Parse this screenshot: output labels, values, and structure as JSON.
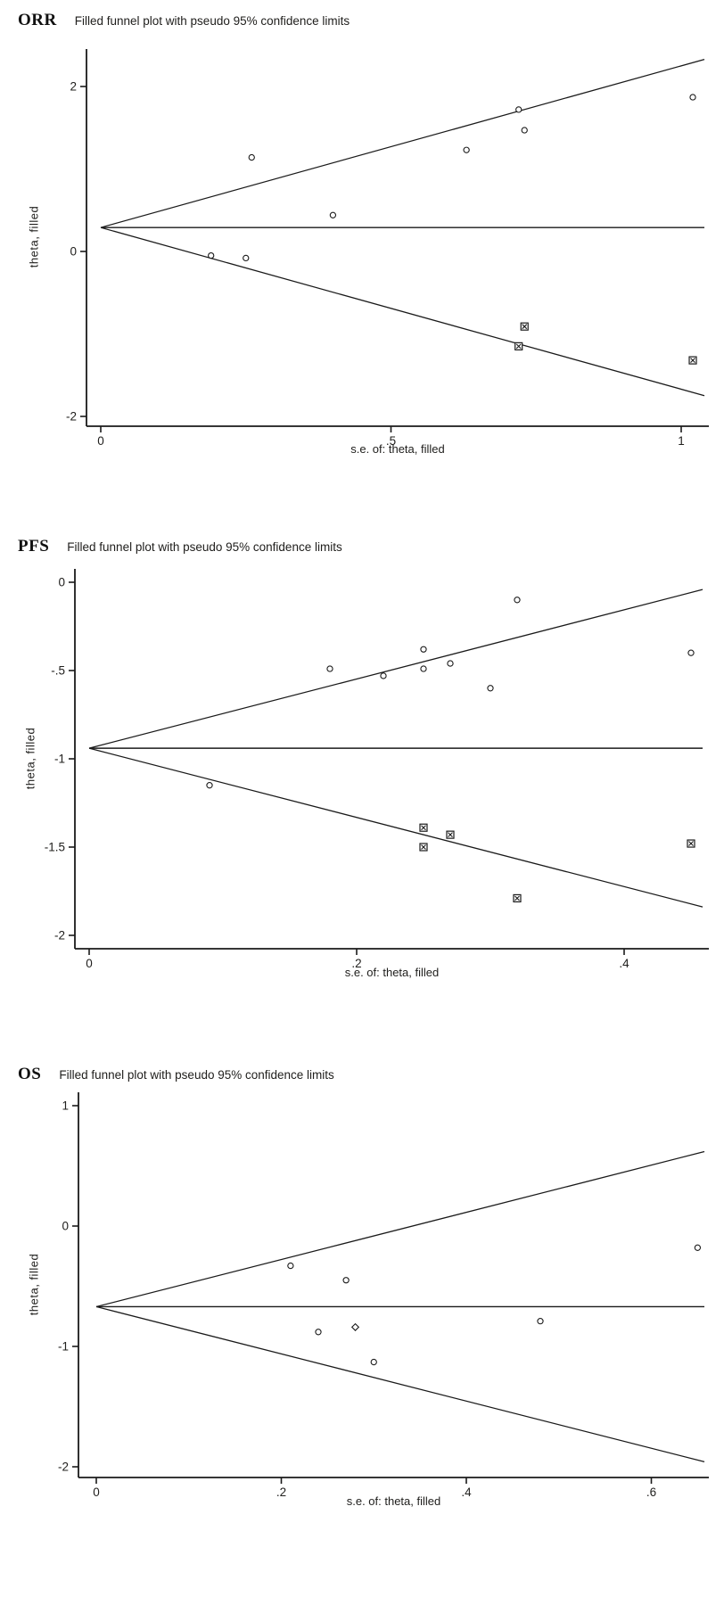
{
  "figure_colors": {
    "line": "#1a1a1a",
    "text": "#21201e",
    "marker_fill": "#ffffff"
  },
  "chart_data": [
    {
      "type": "scatter",
      "key": "orr",
      "label": "ORR",
      "title": "Filled funnel plot with pseudo 95% confidence limits",
      "xlabel": "s.e. of: theta, filled",
      "ylabel": "theta, filled",
      "xlim": [
        0,
        1.04
      ],
      "ylim": [
        -2.12,
        2.45
      ],
      "x_ticks": [
        {
          "v": 0,
          "label": "0"
        },
        {
          "v": 0.5,
          "label": ".5"
        },
        {
          "v": 1,
          "label": "1"
        }
      ],
      "y_ticks": [
        {
          "v": 2,
          "label": "2"
        },
        {
          "v": 0,
          "label": "0"
        },
        {
          "v": -2,
          "label": "-2"
        }
      ],
      "pooled_center": 0.29,
      "ci_slope": 1.96,
      "points_observed": [
        [
          0.19,
          -0.05
        ],
        [
          0.25,
          -0.08
        ],
        [
          0.26,
          1.14
        ],
        [
          0.4,
          0.44
        ],
        [
          0.63,
          1.23
        ],
        [
          0.72,
          1.72
        ],
        [
          0.73,
          1.47
        ],
        [
          1.02,
          1.87
        ]
      ],
      "points_filled": [
        [
          0.73,
          -0.91
        ],
        [
          0.72,
          -1.15
        ],
        [
          1.02,
          -1.32
        ]
      ],
      "points_diamond": []
    },
    {
      "type": "scatter",
      "key": "pfs",
      "label": "PFS",
      "title": "Filled funnel plot with pseudo 95% confidence limits",
      "xlabel": "s.e. of: theta, filled",
      "ylabel": "theta, filled",
      "xlim": [
        0,
        0.459
      ],
      "ylim": [
        -2.08,
        0.08
      ],
      "x_ticks": [
        {
          "v": 0,
          "label": "0"
        },
        {
          "v": 0.2,
          "label": ".2"
        },
        {
          "v": 0.4,
          "label": ".4"
        }
      ],
      "y_ticks": [
        {
          "v": 0,
          "label": "0"
        },
        {
          "v": -0.5,
          "label": "-.5"
        },
        {
          "v": -1,
          "label": "-1"
        },
        {
          "v": -1.5,
          "label": "-1.5"
        },
        {
          "v": -2,
          "label": "-2"
        }
      ],
      "pooled_center": -0.94,
      "ci_slope": 1.96,
      "points_observed": [
        [
          0.09,
          -1.15
        ],
        [
          0.18,
          -0.49
        ],
        [
          0.22,
          -0.53
        ],
        [
          0.25,
          -0.38
        ],
        [
          0.25,
          -0.49
        ],
        [
          0.27,
          -0.46
        ],
        [
          0.3,
          -0.6
        ],
        [
          0.32,
          -0.1
        ],
        [
          0.45,
          -0.4
        ]
      ],
      "points_filled": [
        [
          0.25,
          -1.39
        ],
        [
          0.27,
          -1.43
        ],
        [
          0.25,
          -1.5
        ],
        [
          0.32,
          -1.79
        ],
        [
          0.45,
          -1.48
        ]
      ],
      "points_diamond": []
    },
    {
      "type": "scatter",
      "key": "os",
      "label": "OS",
      "title": "Filled funnel plot with pseudo 95% confidence limits",
      "xlabel": "s.e. of: theta, filled",
      "ylabel": "theta, filled",
      "xlim": [
        0,
        0.657
      ],
      "ylim": [
        -2.09,
        1.11
      ],
      "x_ticks": [
        {
          "v": 0,
          "label": "0"
        },
        {
          "v": 0.2,
          "label": ".2"
        },
        {
          "v": 0.4,
          "label": ".4"
        },
        {
          "v": 0.6,
          "label": ".6"
        }
      ],
      "y_ticks": [
        {
          "v": 1,
          "label": "1"
        },
        {
          "v": 0,
          "label": "0"
        },
        {
          "v": -1,
          "label": "-1"
        },
        {
          "v": -2,
          "label": "-2"
        }
      ],
      "pooled_center": -0.67,
      "ci_slope": 1.96,
      "points_observed": [
        [
          0.21,
          -0.33
        ],
        [
          0.24,
          -0.88
        ],
        [
          0.27,
          -0.45
        ],
        [
          0.3,
          -1.13
        ],
        [
          0.48,
          -0.79
        ],
        [
          0.65,
          -0.18
        ]
      ],
      "points_filled": [],
      "points_diamond": [
        [
          0.28,
          -0.84
        ]
      ]
    }
  ]
}
